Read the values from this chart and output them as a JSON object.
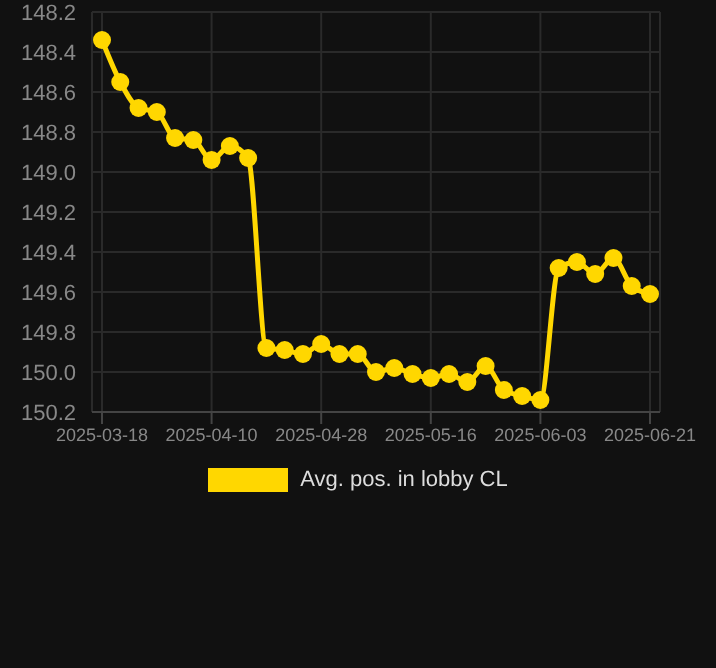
{
  "chart_data": {
    "type": "line",
    "categories": [
      "2025-03-18",
      null,
      null,
      null,
      null,
      null,
      "2025-04-10",
      null,
      null,
      null,
      null,
      null,
      "2025-04-28",
      null,
      null,
      null,
      null,
      null,
      "2025-05-16",
      null,
      null,
      null,
      null,
      null,
      "2025-06-03",
      null,
      null,
      null,
      null,
      null,
      "2025-06-21"
    ],
    "series": [
      {
        "name": "Avg. pos. in lobby CL",
        "color": "#ffd700",
        "values": [
          148.34,
          148.55,
          148.68,
          148.7,
          148.83,
          148.84,
          148.94,
          148.87,
          148.93,
          149.88,
          149.89,
          149.91,
          149.86,
          149.91,
          149.91,
          150.0,
          149.98,
          150.01,
          150.03,
          150.01,
          150.05,
          149.97,
          150.09,
          150.12,
          150.14,
          149.48,
          149.45,
          149.51,
          149.43,
          149.57,
          149.61
        ]
      }
    ],
    "ylim": [
      150.2,
      148.2
    ],
    "yticks": [
      148.2,
      148.4,
      148.6,
      148.8,
      {
        "value": 149,
        "label": "149.0"
      },
      149.2,
      149.4,
      149.6,
      149.8,
      {
        "value": 150,
        "label": "150.0"
      },
      150.2
    ],
    "grid": true,
    "legend": "bottom",
    "marker": "circle",
    "line_style": "solid"
  }
}
